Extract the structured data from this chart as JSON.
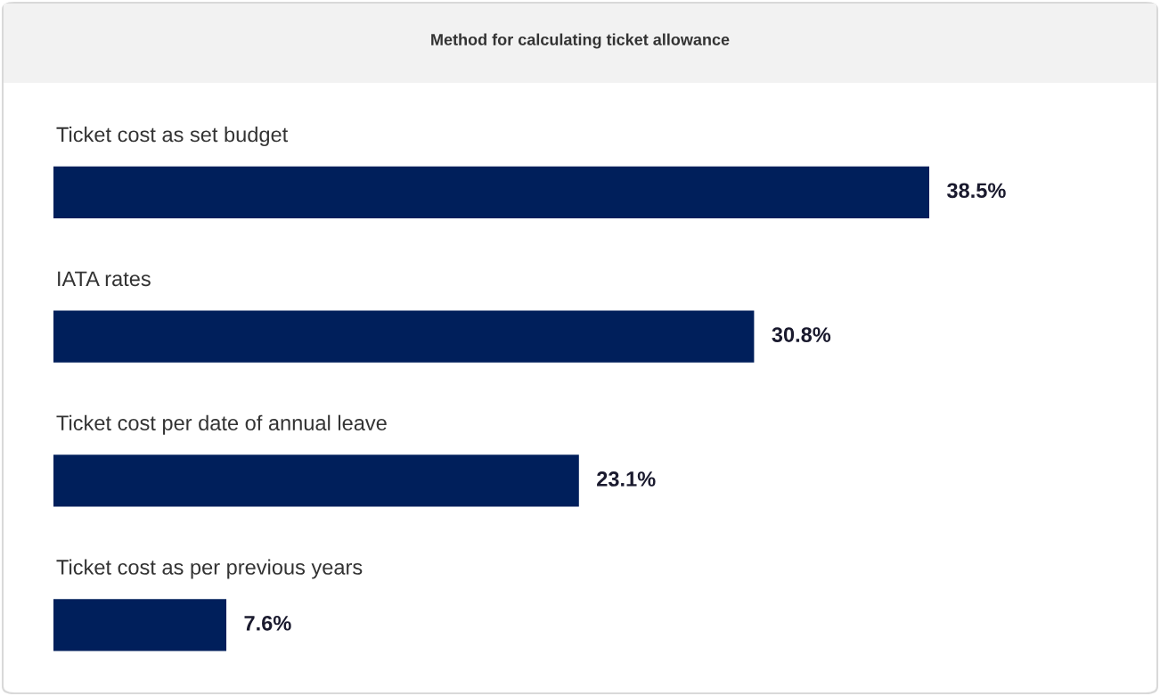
{
  "chart_data": {
    "type": "bar",
    "orientation": "horizontal",
    "title": "Method for calculating ticket allowance",
    "categories": [
      "Ticket cost as set budget",
      "IATA rates",
      "Ticket cost per date of annual leave",
      "Ticket cost as per previous years"
    ],
    "values": [
      38.5,
      30.8,
      23.1,
      7.6
    ],
    "value_labels": [
      "38.5%",
      "30.8%",
      "23.1%",
      "7.6%"
    ],
    "color": "#001f5b"
  }
}
